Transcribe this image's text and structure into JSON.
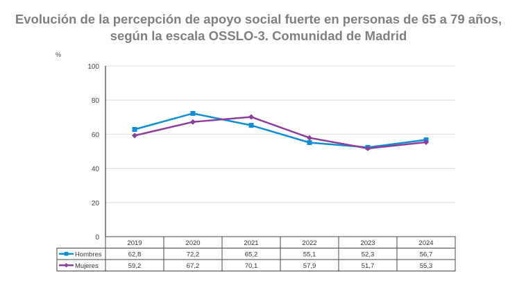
{
  "chart_data": {
    "type": "line",
    "title": "Evolución de la percepción de apoyo social fuerte en personas de 65 a 79 años, según la escala OSSLO-3. Comunidad de Madrid",
    "title_lines": [
      "Evolución de la percepción de apoyo social fuerte en personas de 65 a 79 años,",
      "según la escala OSSLO-3. Comunidad de Madrid"
    ],
    "ylabel": "%",
    "ylim": [
      0,
      100
    ],
    "yticks": [
      0,
      20,
      40,
      60,
      80,
      100
    ],
    "grid": true,
    "legend": "data-table",
    "categories": [
      "2019",
      "2020",
      "2021",
      "2022",
      "2023",
      "2024"
    ],
    "series": [
      {
        "name": "Hombres",
        "values": [
          62.8,
          72.2,
          65.2,
          55.1,
          52.3,
          56.7
        ],
        "labels": [
          "62,8",
          "72,2",
          "65,2",
          "55,1",
          "52,3",
          "56,7"
        ],
        "color": "#0f8fd0",
        "marker": "square"
      },
      {
        "name": "Mujeres",
        "values": [
          59.2,
          67.2,
          70.1,
          57.9,
          51.7,
          55.3
        ],
        "labels": [
          "59,2",
          "67,2",
          "70,1",
          "57,9",
          "51,7",
          "55,3"
        ],
        "color": "#8b3f9b",
        "marker": "diamond"
      }
    ]
  }
}
